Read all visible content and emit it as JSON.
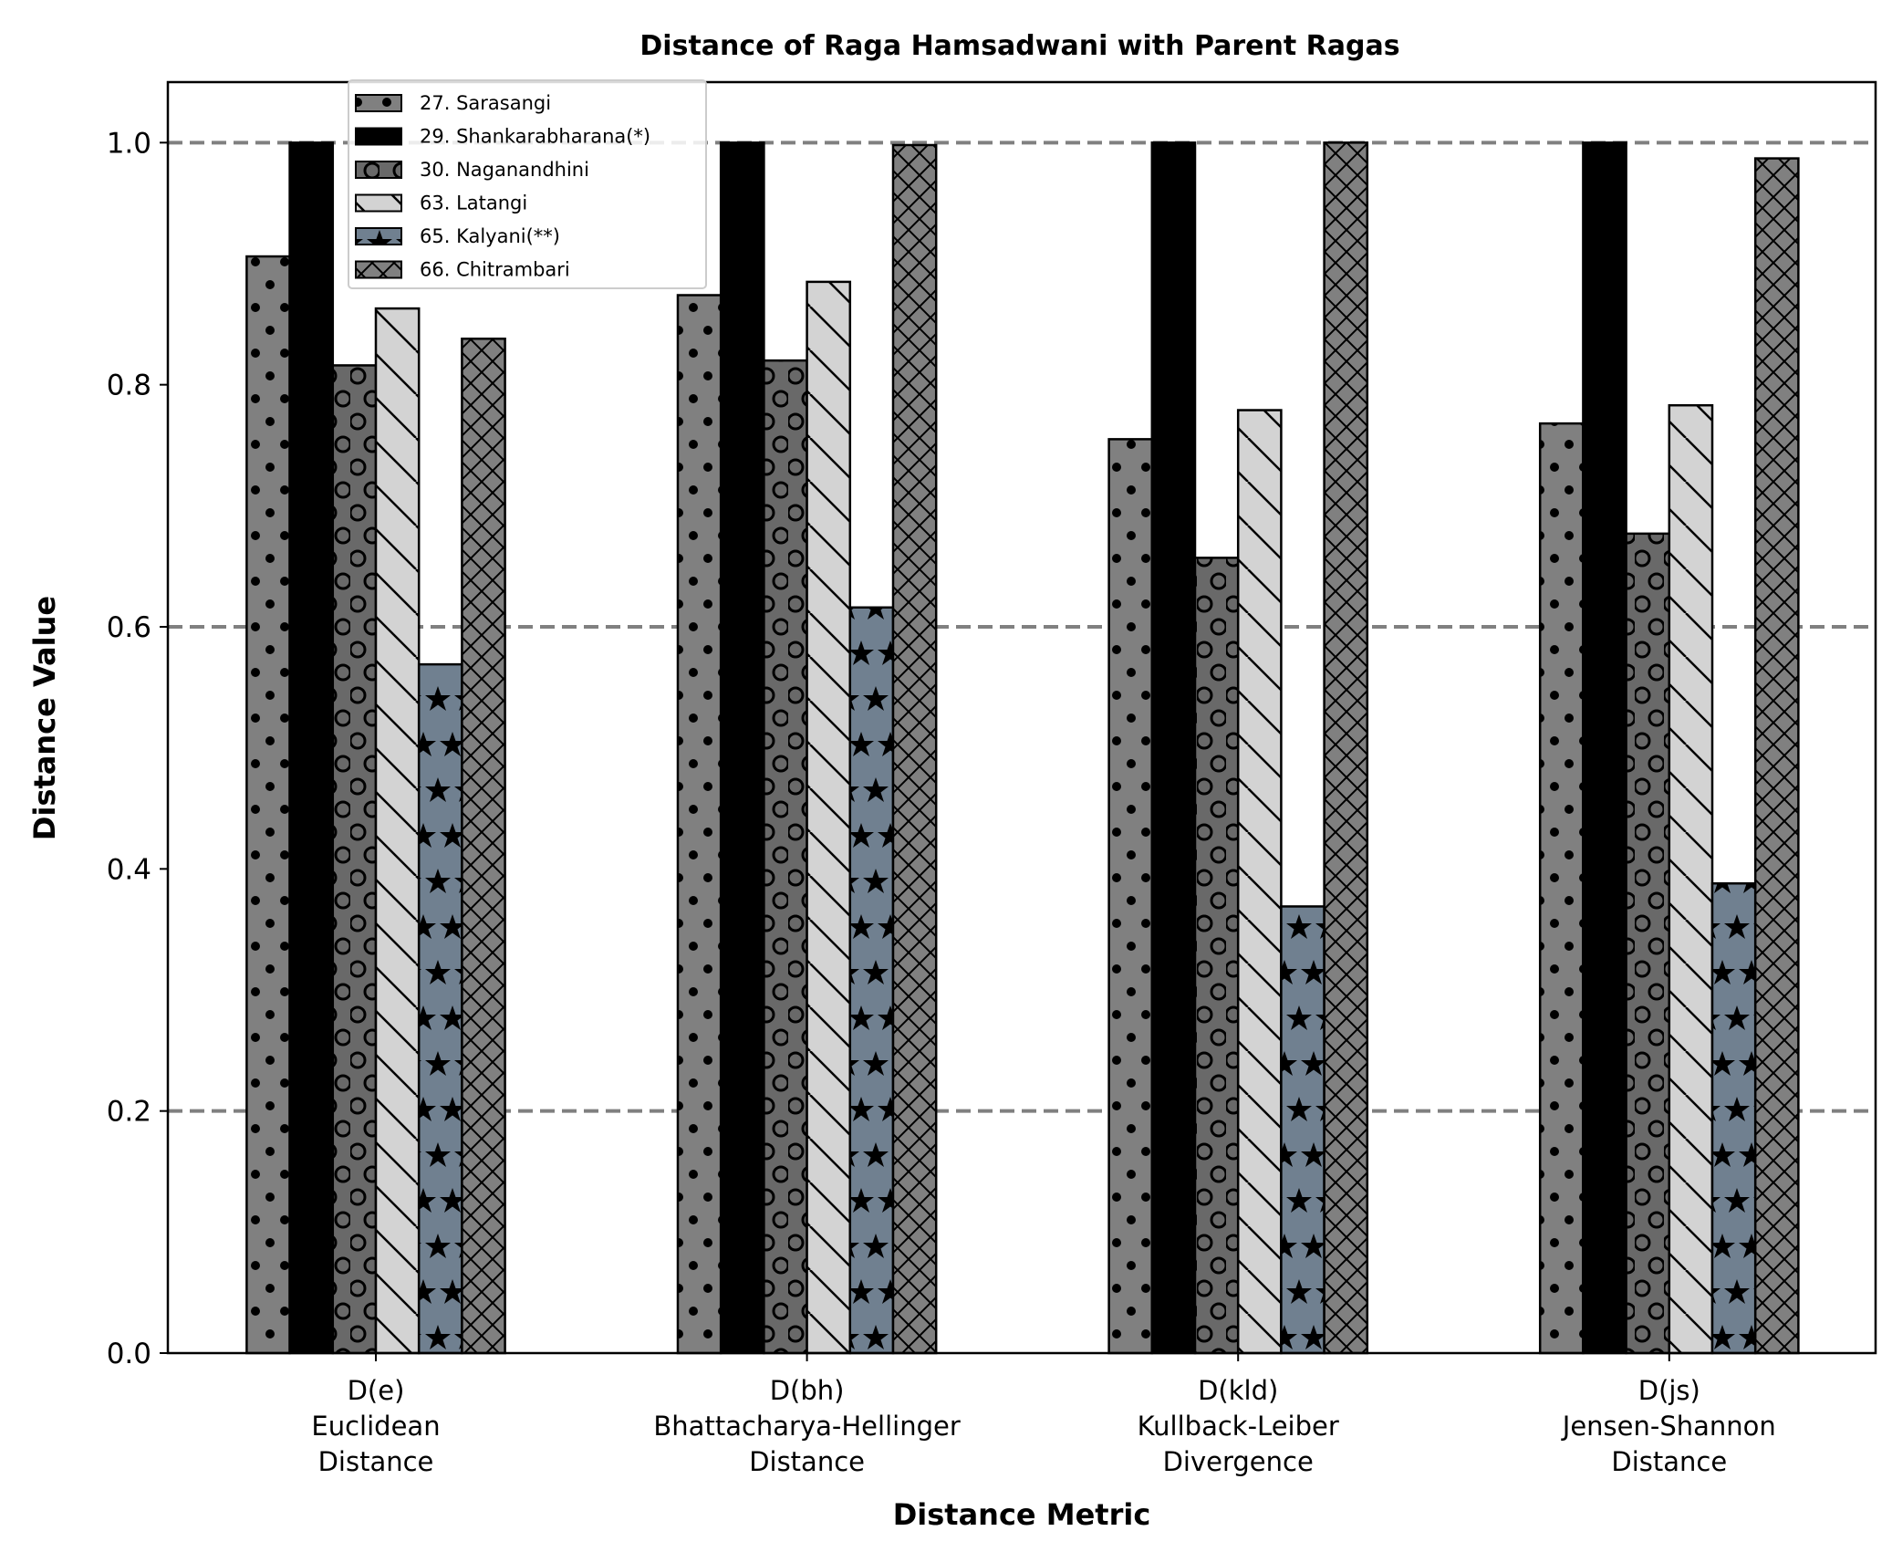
{
  "chart_data": {
    "type": "bar",
    "title": "Distance of Raga Hamsadwani with Parent Ragas",
    "xlabel": "Distance Metric",
    "ylabel": "Distance Value",
    "ylim": [
      0,
      1.05
    ],
    "yticks": [
      "0.0",
      "0.2",
      "0.4",
      "0.6",
      "0.8",
      "1.0"
    ],
    "grid": "horizontal dashed gray lines at 0.2, 0.6, 1.0",
    "legend_position": "upper-left",
    "categories": [
      [
        "D(e)",
        "Euclidean",
        "Distance"
      ],
      [
        "D(bh)",
        "Bhattacharya-Hellinger",
        "Distance"
      ],
      [
        "D(kld)",
        "Kullback-Leiber",
        "Divergence"
      ],
      [
        "D(js)",
        "Jensen-Shannon",
        "Distance"
      ]
    ],
    "series": [
      {
        "name": "27. Sarasangi",
        "color": "#808080",
        "pattern": "dots",
        "values": [
          0.906,
          0.874,
          0.755,
          0.768
        ]
      },
      {
        "name": "29. Shankarabharana(*)",
        "color": "#000000",
        "pattern": "solid",
        "values": [
          1.0,
          1.0,
          1.0,
          1.0
        ]
      },
      {
        "name": "30. Naganandhini",
        "color": "#696969",
        "pattern": "circles",
        "values": [
          0.816,
          0.82,
          0.657,
          0.677
        ]
      },
      {
        "name": "63. Latangi",
        "color": "#d3d3d3",
        "pattern": "backslash",
        "values": [
          0.863,
          0.885,
          0.779,
          0.783
        ]
      },
      {
        "name": "65. Kalyani(**)",
        "color": "#708090",
        "pattern": "stars",
        "values": [
          0.569,
          0.616,
          0.369,
          0.388
        ]
      },
      {
        "name": "66. Chitrambari",
        "color": "#808080",
        "pattern": "crosshatch",
        "values": [
          0.838,
          0.998,
          1.0,
          0.987
        ]
      }
    ]
  }
}
